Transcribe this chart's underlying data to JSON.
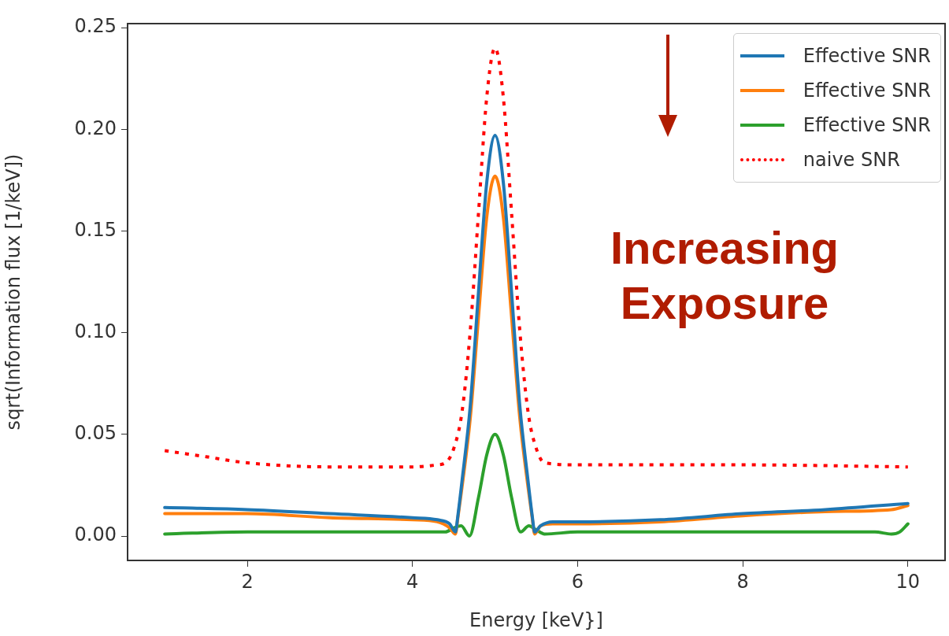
{
  "chart_data": {
    "type": "line",
    "xlabel": "Energy [keV}]",
    "ylabel": "sqrt(Information flux [1/keV])",
    "xlim": [
      0.55,
      10.45
    ],
    "ylim": [
      -0.012,
      0.252
    ],
    "xticks": [
      2,
      4,
      6,
      8,
      10
    ],
    "yticks": [
      {
        "value": 0,
        "label": "0.00"
      },
      {
        "value": 0.05,
        "label": "0.05"
      },
      {
        "value": 0.1,
        "label": "0.10"
      },
      {
        "value": 0.15,
        "label": "0.15"
      },
      {
        "value": 0.2,
        "label": "0.20"
      },
      {
        "value": 0.25,
        "label": "0.25"
      }
    ],
    "grid": false,
    "legend": "top right",
    "marker": "none",
    "annotations": [
      "Increasing Exposure"
    ],
    "series": [
      {
        "name": "Effective SNR",
        "color": "#1f77b4",
        "x": [
          1,
          2,
          3,
          4,
          4.3,
          4.45,
          4.52,
          4.55,
          4.6,
          4.7,
          4.8,
          4.9,
          5,
          5.1,
          5.2,
          5.3,
          5.4,
          5.45,
          5.48,
          5.55,
          5.7,
          6,
          7,
          8,
          9,
          10
        ],
        "values": [
          0.014,
          0.013,
          0.011,
          0.009,
          0.008,
          0.006,
          0.002,
          0.01,
          0.027,
          0.064,
          0.12,
          0.174,
          0.197,
          0.174,
          0.12,
          0.064,
          0.027,
          0.01,
          0.002,
          0.005,
          0.007,
          0.007,
          0.008,
          0.011,
          0.013,
          0.016
        ]
      },
      {
        "name": "Effective SNR",
        "color": "#ff7f0e",
        "x": [
          1,
          2,
          3,
          4,
          4.3,
          4.45,
          4.52,
          4.55,
          4.6,
          4.7,
          4.8,
          4.9,
          5,
          5.1,
          5.2,
          5.3,
          5.4,
          5.45,
          5.48,
          5.55,
          5.7,
          6,
          7,
          8,
          9,
          9.8,
          10
        ],
        "values": [
          0.011,
          0.011,
          0.009,
          0.008,
          0.007,
          0.004,
          0.001,
          0.009,
          0.024,
          0.058,
          0.108,
          0.157,
          0.177,
          0.157,
          0.108,
          0.058,
          0.024,
          0.009,
          0.001,
          0.005,
          0.006,
          0.006,
          0.007,
          0.01,
          0.012,
          0.013,
          0.015
        ]
      },
      {
        "name": "Effective SNR",
        "color": "#2ca02c",
        "x": [
          1,
          2,
          3,
          4,
          4.4,
          4.5,
          4.59,
          4.69,
          4.8,
          4.9,
          5,
          5.1,
          5.2,
          5.31,
          5.41,
          5.5,
          5.6,
          6,
          7,
          8,
          9,
          9.6,
          9.8,
          9.9,
          10
        ],
        "values": [
          0.001,
          0.002,
          0.002,
          0.002,
          0.002,
          0.004,
          0.005,
          0.0,
          0.019,
          0.04,
          0.05,
          0.04,
          0.019,
          0.002,
          0.005,
          0.003,
          0.001,
          0.002,
          0.002,
          0.002,
          0.002,
          0.002,
          0.001,
          0.002,
          0.006
        ]
      },
      {
        "name": "naive SNR",
        "color": "#ff0000",
        "line_style": "dotted",
        "x": [
          1,
          1.5,
          2,
          3,
          4,
          4.3,
          4.4,
          4.5,
          4.6,
          4.7,
          4.8,
          4.9,
          5,
          5.1,
          5.2,
          5.3,
          5.4,
          5.5,
          5.6,
          6,
          8,
          10
        ],
        "values": [
          0.042,
          0.039,
          0.036,
          0.034,
          0.034,
          0.035,
          0.036,
          0.043,
          0.061,
          0.101,
          0.159,
          0.216,
          0.24,
          0.216,
          0.159,
          0.101,
          0.061,
          0.043,
          0.036,
          0.035,
          0.035,
          0.034
        ]
      }
    ]
  }
}
